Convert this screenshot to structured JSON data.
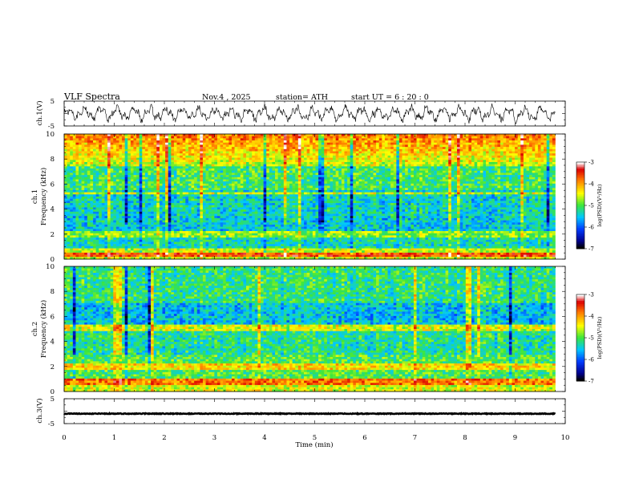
{
  "header": {
    "title": "VLF  Spectra",
    "date": "Nov.4  , 2025",
    "station": "station= ATH",
    "start": "start  UT  =   6  : 20 : 0"
  },
  "chart_data": [
    {
      "type": "line",
      "name": "ch1-waveform",
      "ylabel": "ch.1(V)",
      "ylim": [
        -5,
        5
      ],
      "yticks": [
        "5",
        "-5"
      ],
      "x_range_min": [
        0,
        9.8
      ],
      "description_values": "noisy waveform between about -3.5 and 3.5 V"
    },
    {
      "type": "heatmap",
      "name": "ch1-spectrogram",
      "ylabel_line1": "ch.1",
      "ylabel_line2": "Frequency  (kHz)",
      "ylim": [
        0,
        10
      ],
      "yticks": [
        "0",
        "2",
        "4",
        "6",
        "8",
        "10"
      ],
      "colorbar": {
        "label": "log(PSD)(V²/Hz)",
        "range": [
          -7,
          -3
        ],
        "ticks": [
          "-3",
          "-4",
          "-5",
          "-6",
          "-7"
        ]
      }
    },
    {
      "type": "heatmap",
      "name": "ch2-spectrogram",
      "ylabel_line1": "ch.2",
      "ylabel_line2": "Frequency  (kHz)",
      "ylim": [
        0,
        10
      ],
      "yticks": [
        "0",
        "2",
        "4",
        "6",
        "8",
        "10"
      ],
      "colorbar": {
        "label": "log(PSD)(V²/Hz)",
        "range": [
          -7,
          -3
        ],
        "ticks": [
          "-3",
          "-4",
          "-5",
          "-6",
          "-7"
        ]
      }
    },
    {
      "type": "line",
      "name": "ch3-waveform",
      "ylabel": "ch.3(V)",
      "ylim": [
        -5,
        5
      ],
      "yticks": [
        "5",
        "-5"
      ],
      "x_range_min": [
        0,
        9.8
      ],
      "description_values": "flat trace near -1 V"
    }
  ],
  "xaxis": {
    "label": "Time  (min)",
    "range": [
      0,
      10
    ],
    "ticks": [
      "0",
      "1",
      "2",
      "3",
      "4",
      "5",
      "6",
      "7",
      "8",
      "9",
      "10"
    ]
  }
}
